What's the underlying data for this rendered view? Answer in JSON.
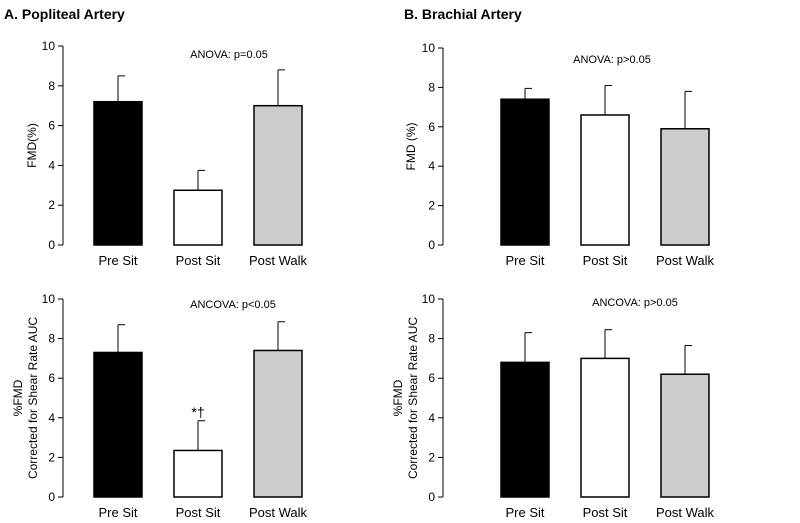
{
  "sections": {
    "a_title": "A. Popliteal Artery",
    "b_title": "B. Brachial Artery"
  },
  "colors": {
    "pre": "#000000",
    "post_sit": "#ffffff",
    "post_walk": "#cccccc"
  },
  "chart_data": [
    {
      "id": "popliteal-fmd",
      "type": "bar",
      "title": "",
      "annotation": "ANOVA: p=0.05",
      "ylabel": [
        "FMD(%)"
      ],
      "categories": [
        "Pre Sit",
        "Post Sit",
        "Post Walk"
      ],
      "values": [
        7.2,
        2.75,
        7.0
      ],
      "errors": [
        1.3,
        1.0,
        1.8
      ],
      "bar_marks": [
        "",
        "",
        ""
      ],
      "ylim": [
        0,
        10
      ],
      "yticks": [
        0,
        2,
        4,
        6,
        8,
        10
      ]
    },
    {
      "id": "brachial-fmd",
      "type": "bar",
      "title": "",
      "annotation": "ANOVA: p>0.05",
      "ylabel": [
        "FMD (%)"
      ],
      "categories": [
        "Pre Sit",
        "Post Sit",
        "Post Walk"
      ],
      "values": [
        7.4,
        6.6,
        5.9
      ],
      "errors": [
        0.55,
        1.5,
        1.9
      ],
      "bar_marks": [
        "",
        "",
        ""
      ],
      "ylim": [
        0,
        10
      ],
      "yticks": [
        0,
        2,
        4,
        6,
        8,
        10
      ]
    },
    {
      "id": "popliteal-corrected",
      "type": "bar",
      "title": "",
      "annotation": "ANCOVA: p<0.05",
      "ylabel": [
        "%FMD",
        "Corrected for Shear Rate AUC"
      ],
      "categories": [
        "Pre Sit",
        "Post Sit",
        "Post Walk"
      ],
      "values": [
        7.3,
        2.35,
        7.4
      ],
      "errors": [
        1.4,
        1.5,
        1.45
      ],
      "bar_marks": [
        "",
        "*†",
        ""
      ],
      "ylim": [
        0,
        10
      ],
      "yticks": [
        0,
        2,
        4,
        6,
        8,
        10
      ]
    },
    {
      "id": "brachial-corrected",
      "type": "bar",
      "title": "",
      "annotation": "ANCOVA: p>0.05",
      "ylabel": [
        "%FMD",
        "Corrected for Shear Rate AUC"
      ],
      "categories": [
        "Pre Sit",
        "Post Sit",
        "Post Walk"
      ],
      "values": [
        6.8,
        7.0,
        6.2
      ],
      "errors": [
        1.5,
        1.45,
        1.45
      ],
      "bar_marks": [
        "",
        "",
        ""
      ],
      "ylim": [
        0,
        10
      ],
      "yticks": [
        0,
        2,
        4,
        6,
        8,
        10
      ]
    }
  ]
}
